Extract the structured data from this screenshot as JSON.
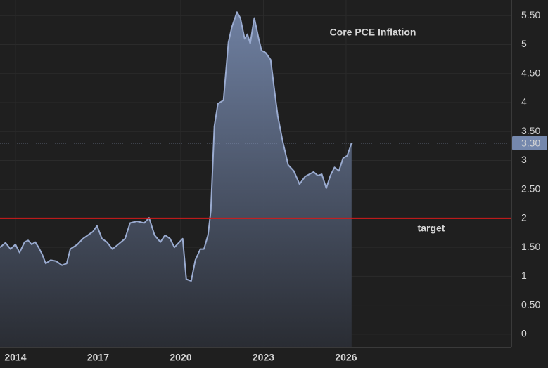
{
  "chart_data": {
    "type": "area",
    "title": "Core PCE Inflation",
    "color": "#9aabd0",
    "x": [
      2013.44,
      2013.64,
      2013.82,
      2014.0,
      2014.15,
      2014.33,
      2014.46,
      2014.59,
      2014.72,
      2014.84,
      2014.97,
      2015.1,
      2015.28,
      2015.48,
      2015.69,
      2015.86,
      2015.99,
      2016.25,
      2016.45,
      2016.63,
      2016.81,
      2016.96,
      2017.14,
      2017.32,
      2017.52,
      2017.73,
      2017.98,
      2018.16,
      2018.41,
      2018.67,
      2018.85,
      2019.05,
      2019.26,
      2019.43,
      2019.61,
      2019.77,
      2019.95,
      2020.07,
      2020.2,
      2020.38,
      2020.53,
      2020.71,
      2020.84,
      2020.99,
      2021.09,
      2021.22,
      2021.35,
      2021.55,
      2021.73,
      2021.86,
      2022.04,
      2022.16,
      2022.32,
      2022.42,
      2022.52,
      2022.67,
      2022.83,
      2022.93,
      2023.08,
      2023.26,
      2023.39,
      2023.52,
      2023.69,
      2023.9,
      2024.1,
      2024.31,
      2024.51,
      2024.66,
      2024.82,
      2024.97,
      2025.12,
      2025.28,
      2025.43,
      2025.58,
      2025.74,
      2025.89,
      2026.04,
      2026.2
    ],
    "values": [
      1.5,
      1.58,
      1.47,
      1.55,
      1.41,
      1.59,
      1.62,
      1.55,
      1.59,
      1.5,
      1.38,
      1.22,
      1.28,
      1.26,
      1.19,
      1.22,
      1.47,
      1.55,
      1.65,
      1.71,
      1.77,
      1.87,
      1.65,
      1.59,
      1.47,
      1.55,
      1.65,
      1.92,
      1.95,
      1.92,
      2.01,
      1.71,
      1.59,
      1.71,
      1.65,
      1.5,
      1.59,
      1.65,
      0.95,
      0.92,
      1.28,
      1.47,
      1.47,
      1.71,
      2.13,
      3.59,
      3.98,
      4.04,
      5.04,
      5.31,
      5.56,
      5.46,
      5.1,
      5.18,
      5.02,
      5.46,
      5.1,
      4.9,
      4.86,
      4.74,
      4.25,
      3.77,
      3.35,
      2.92,
      2.82,
      2.59,
      2.72,
      2.76,
      2.8,
      2.74,
      2.76,
      2.52,
      2.74,
      2.88,
      2.82,
      3.04,
      3.08,
      3.3
    ],
    "xlim": [
      2013.44,
      2032.0
    ],
    "xticks": [
      2014,
      2017,
      2020,
      2023,
      2026
    ],
    "ylim": [
      -0.22,
      5.77
    ],
    "yticks": [
      0,
      {
        "value": 0.5,
        "label": "0.50"
      },
      1,
      {
        "value": 1.5,
        "label": "1.50"
      },
      2,
      {
        "value": 2.5,
        "label": "2.50"
      },
      3,
      {
        "value": 3.5,
        "label": "3.50"
      },
      4,
      {
        "value": 4.5,
        "label": "4.50"
      },
      5,
      {
        "value": 5.5,
        "label": "5.50"
      }
    ],
    "grid": true,
    "current_value": {
      "value": 3.3,
      "label": "3.30"
    },
    "reference_line": {
      "value": 2,
      "label": "target",
      "color": "#d21b1b"
    }
  }
}
